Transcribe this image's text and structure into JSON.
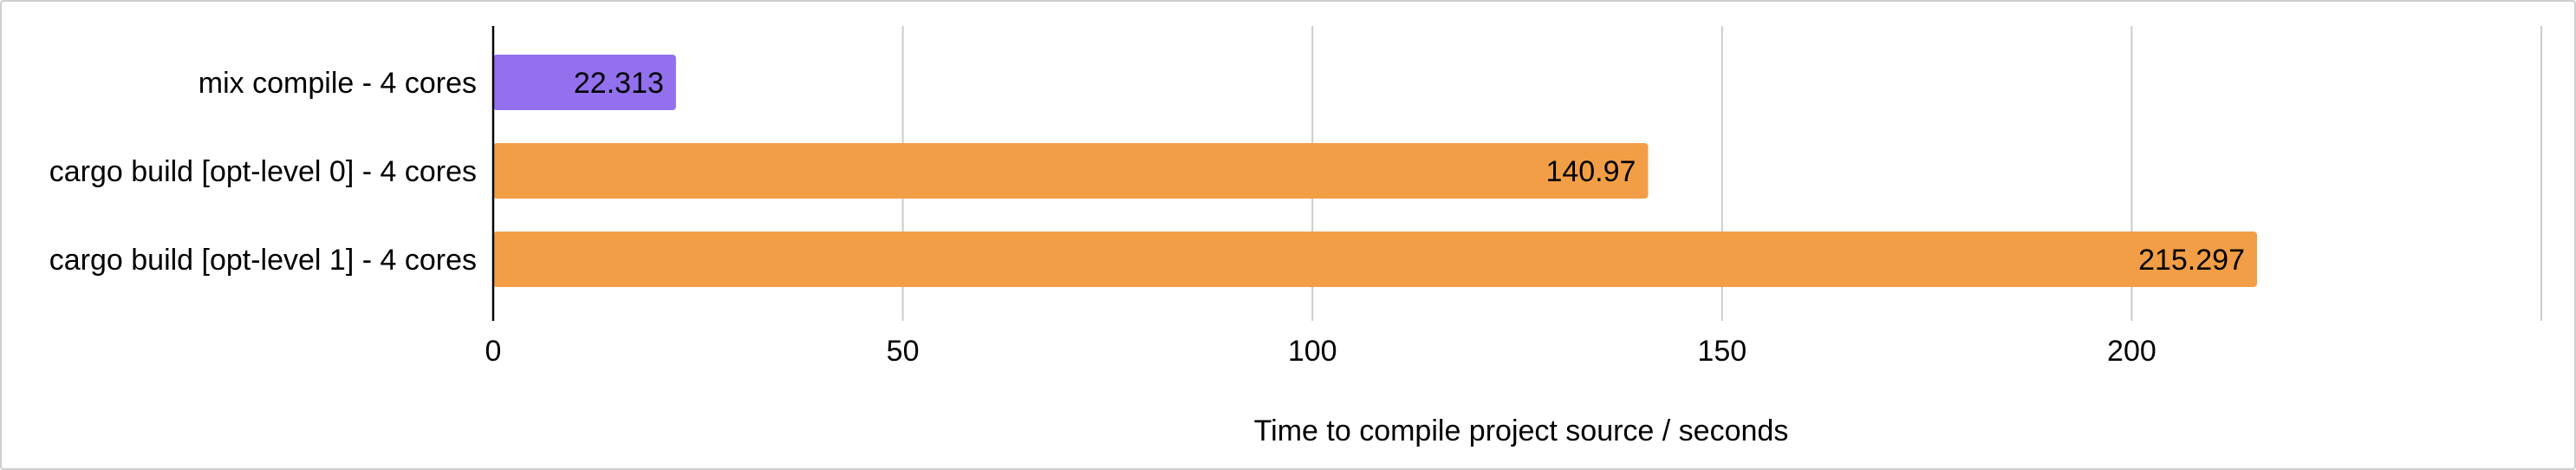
{
  "chart_data": {
    "type": "bar",
    "orientation": "horizontal",
    "categories": [
      "mix compile - 4 cores",
      "cargo build [opt-level 0] - 4 cores",
      "cargo build [opt-level 1] - 4 cores"
    ],
    "values": [
      22.313,
      140.97,
      215.297
    ],
    "data_labels": [
      "22.313",
      "140.97",
      "215.297"
    ],
    "bar_colors": [
      "#9370EE",
      "#F29E47",
      "#F29E47"
    ],
    "title": "",
    "xlabel": "Time to compile project source / seconds",
    "ylabel": "",
    "xlim": [
      0,
      250
    ],
    "x_ticks": [
      0,
      50,
      100,
      150,
      200,
      250
    ],
    "x_tick_labels": [
      "0",
      "50",
      "100",
      "150",
      "200",
      ""
    ],
    "grid": "vertical",
    "legend": "none"
  }
}
